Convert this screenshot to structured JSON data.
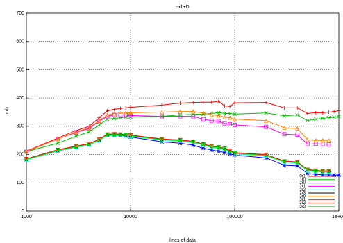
{
  "chart_data": {
    "type": "line",
    "title": "-a1+D",
    "x_label": "lines of data",
    "y_label": "pplx",
    "log_x": true,
    "grid": true,
    "legend": "bottom-right",
    "x": [
      1000,
      2000,
      3000,
      4000,
      5000,
      6000,
      7000,
      8000,
      9000,
      10000,
      20000,
      30000,
      40000,
      50000,
      60000,
      70000,
      80000,
      90000,
      100000,
      200000,
      300000,
      400000,
      500000,
      600000,
      700000,
      800000,
      900000,
      1000000
    ],
    "xlim": [
      1000,
      1000000
    ],
    "xticks": [
      1000,
      10000,
      100000,
      {
        "value": 1000000,
        "label": "1e+06"
      }
    ],
    "ylim": [
      0,
      700
    ],
    "yticks": [
      0,
      100,
      200,
      300,
      400,
      500,
      600,
      700
    ],
    "series": [
      {
        "name": "l0r1",
        "color": "#ff0000",
        "marker": "plus",
        "values": [
          212,
          258,
          285,
          300,
          330,
          355,
          360,
          363,
          365,
          367,
          375,
          382,
          384,
          385,
          385,
          388,
          372,
          370,
          383,
          384,
          365,
          365,
          345,
          348,
          348,
          350,
          352,
          355
        ]
      },
      {
        "name": "l1r0",
        "color": "#00c000",
        "marker": "cross",
        "values": [
          210,
          240,
          265,
          280,
          305,
          325,
          328,
          330,
          332,
          333,
          335,
          340,
          342,
          343,
          345,
          348,
          345,
          345,
          343,
          347,
          337,
          340,
          320,
          325,
          328,
          330,
          332,
          335
        ]
      },
      {
        "name": "l2r0",
        "color": "#0000ff",
        "marker": "star",
        "values": [
          182,
          213,
          226,
          235,
          250,
          268,
          268,
          267,
          265,
          262,
          245,
          240,
          233,
          222,
          216,
          212,
          207,
          202,
          198,
          188,
          162,
          160,
          133,
          130,
          128,
          128,
          127,
          127
        ]
      },
      {
        "name": "l2r1",
        "color": "#ff00ff",
        "marker": "square",
        "values": [
          210,
          255,
          278,
          292,
          318,
          335,
          340,
          340,
          340,
          338,
          335,
          335,
          335,
          325,
          320,
          318,
          310,
          307,
          305,
          298,
          272,
          270,
          237,
          238,
          237,
          236,
          null,
          null
        ]
      },
      {
        "name": "l2r2",
        "color": "#00ffff",
        "marker": "square",
        "values": [
          181,
          213,
          226,
          235,
          250,
          268,
          269,
          268,
          267,
          265,
          251,
          248,
          243,
          233,
          226,
          223,
          218,
          210,
          203,
          196,
          173,
          170,
          143,
          140,
          138,
          138,
          null,
          null
        ]
      },
      {
        "name": "l2r3",
        "color": "#000000",
        "marker": "circle",
        "values": [
          183,
          215,
          228,
          237,
          252,
          270,
          271,
          270,
          269,
          267,
          253,
          250,
          245,
          235,
          228,
          225,
          220,
          212,
          205,
          198,
          175,
          172,
          145,
          142,
          140,
          140,
          null,
          null
        ]
      },
      {
        "name": "l3r0",
        "color": "#ff8000",
        "marker": "triangle",
        "values": [
          210,
          255,
          280,
          295,
          320,
          340,
          345,
          346,
          347,
          348,
          350,
          352,
          352,
          347,
          340,
          338,
          332,
          330,
          325,
          320,
          295,
          292,
          252,
          250,
          250,
          250,
          null,
          null
        ]
      },
      {
        "name": "l3r1",
        "color": "#a0522d",
        "marker": "plus",
        "values": [
          185,
          217,
          230,
          239,
          254,
          272,
          273,
          272,
          271,
          269,
          255,
          252,
          247,
          237,
          230,
          227,
          222,
          214,
          207,
          200,
          177,
          174,
          147,
          144,
          142,
          142,
          null,
          null
        ]
      },
      {
        "name": "l3r2",
        "color": "#ff0000",
        "marker": "triangle-down",
        "values": [
          184,
          216,
          229,
          238,
          253,
          271,
          272,
          271,
          270,
          268,
          254,
          251,
          246,
          236,
          229,
          226,
          221,
          213,
          206,
          199,
          176,
          173,
          146,
          143,
          141,
          141,
          null,
          null
        ]
      },
      {
        "name": "l3r3",
        "color": "#00ff00",
        "marker": "triangle-down",
        "values": [
          182,
          214,
          227,
          236,
          251,
          269,
          270,
          269,
          268,
          266,
          252,
          249,
          244,
          234,
          227,
          224,
          219,
          211,
          204,
          197,
          174,
          171,
          144,
          141,
          139,
          139,
          null,
          null
        ]
      }
    ]
  }
}
